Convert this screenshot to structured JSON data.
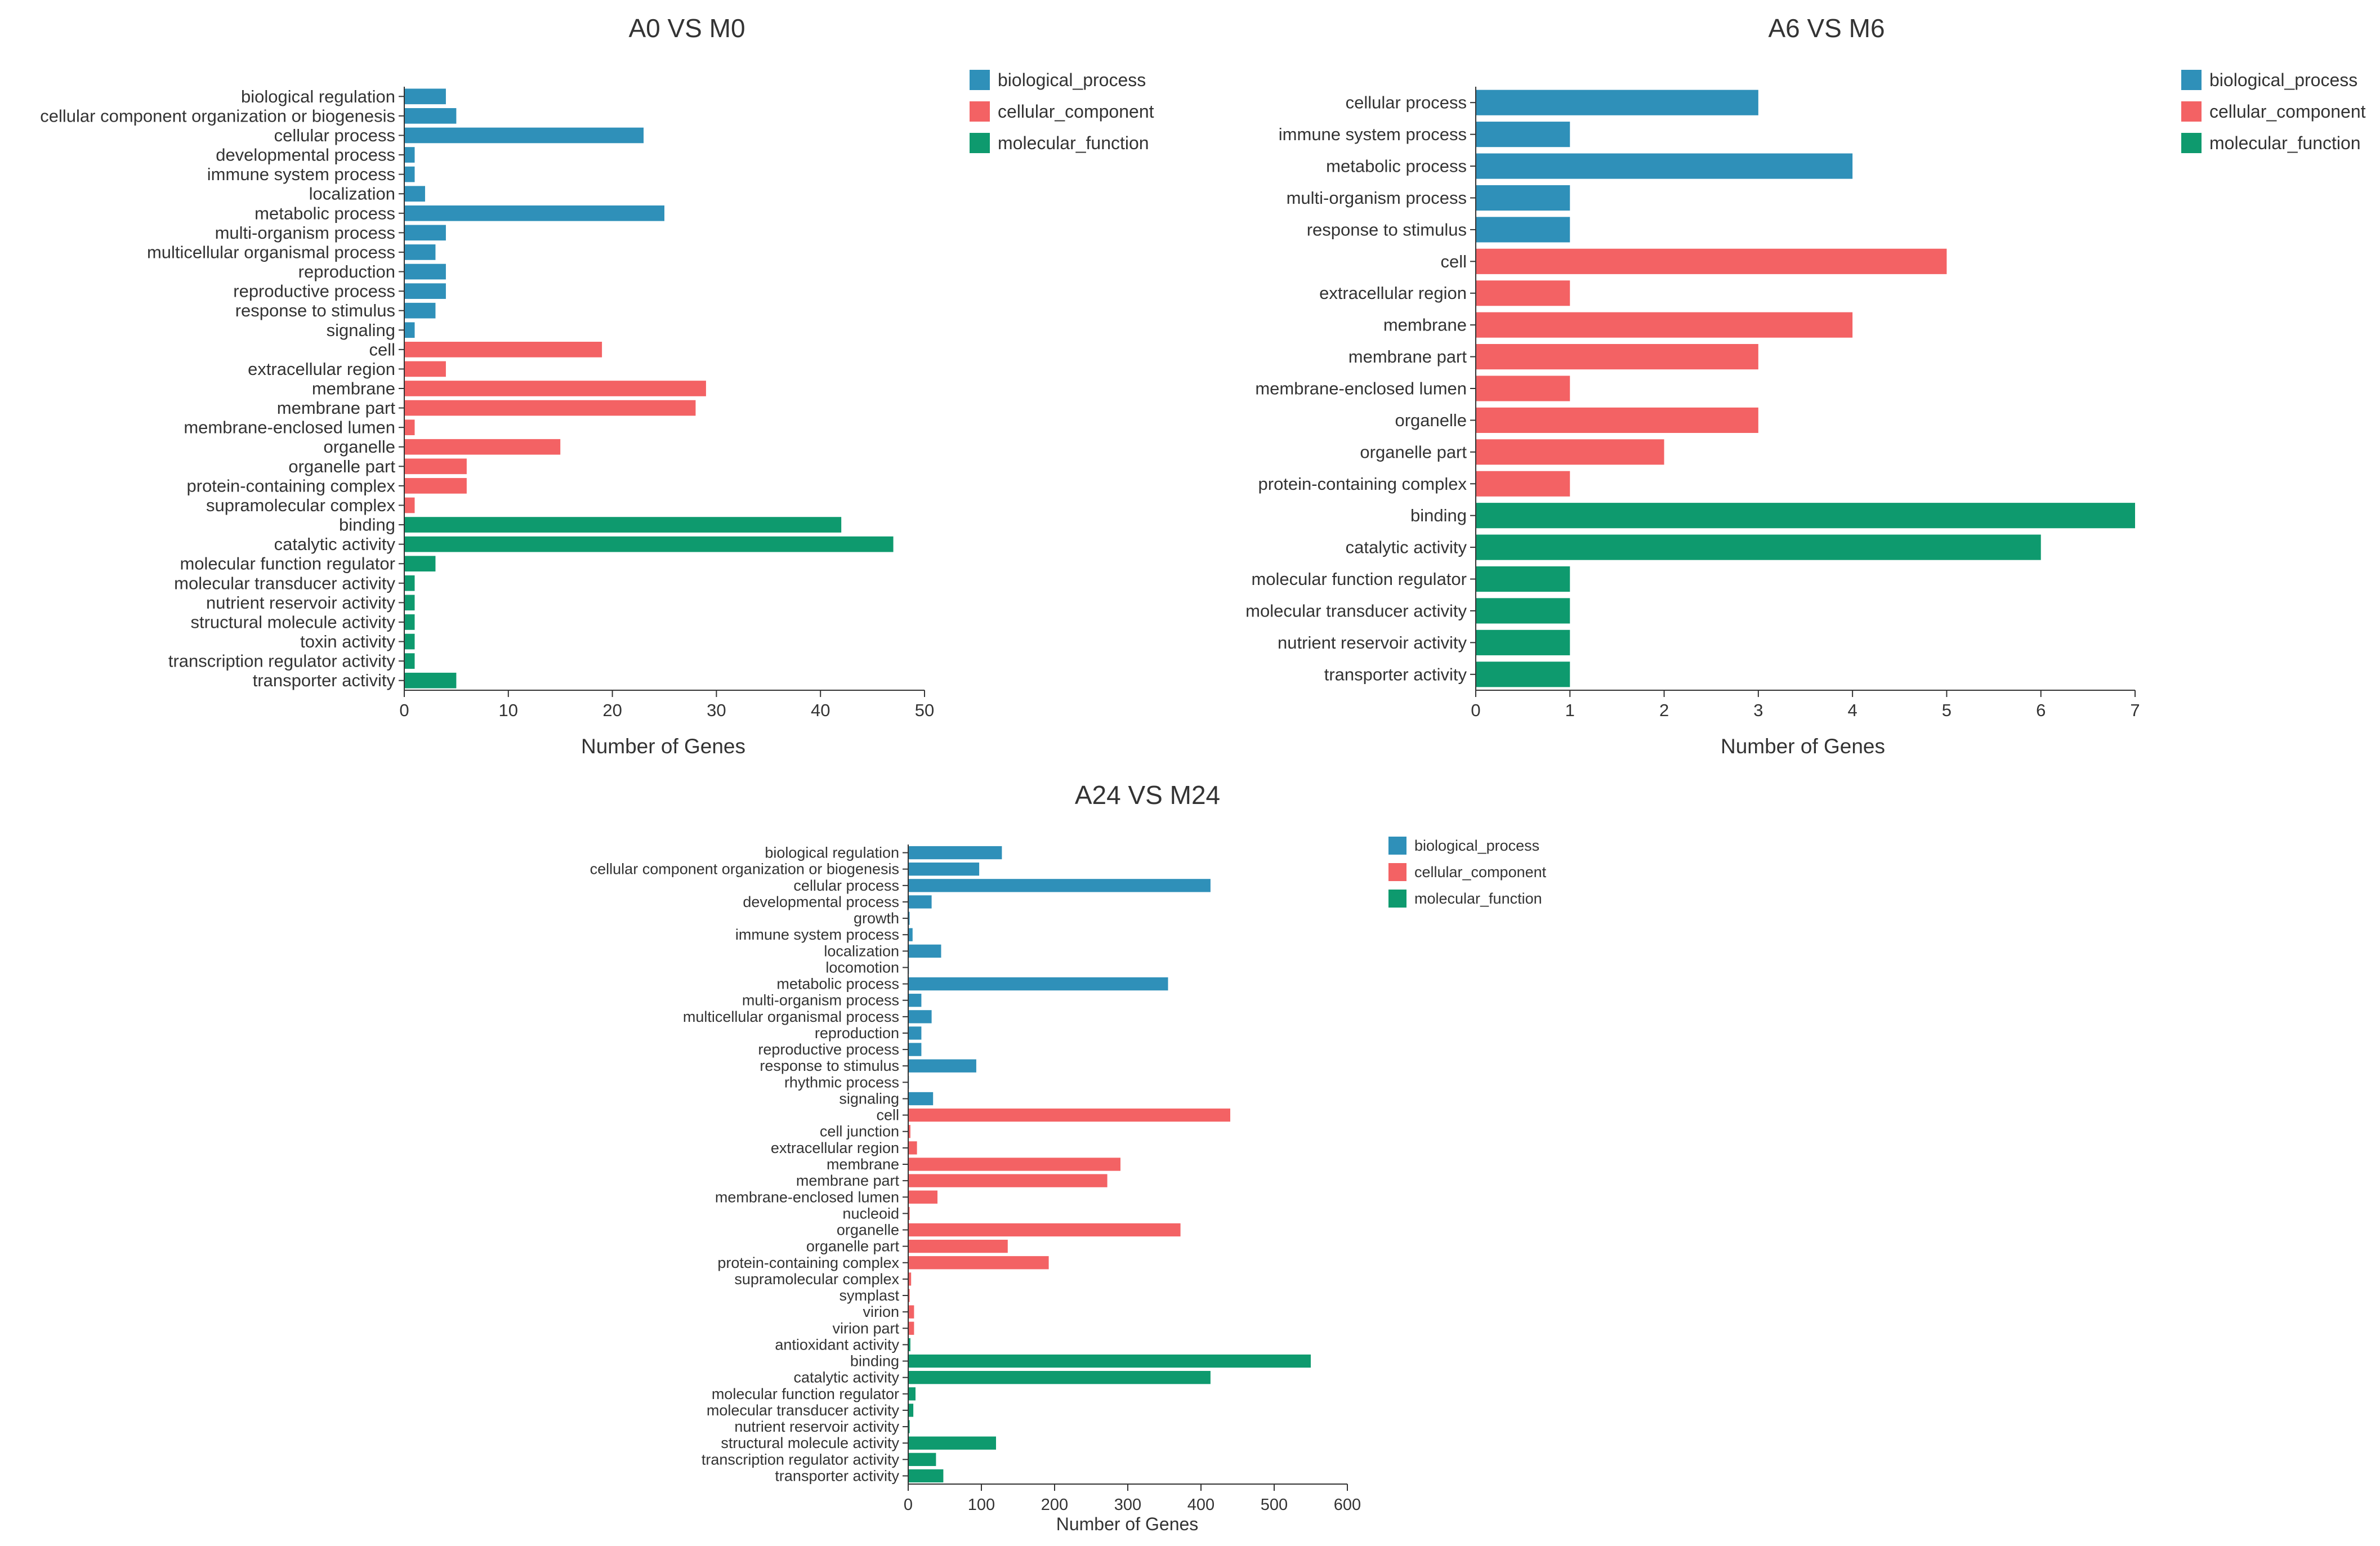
{
  "colors": {
    "biological_process": "#2f90b9",
    "cellular_component": "#f36264",
    "molecular_function": "#0e9a6e"
  },
  "chart_data": [
    {
      "type": "bar",
      "orientation": "horizontal",
      "title": "A0 VS M0",
      "xlabel": "Number of Genes",
      "xlim": [
        0,
        50
      ],
      "xticks": [
        0,
        10,
        20,
        30,
        40,
        50
      ],
      "legend_position": "top-right",
      "legend": [
        "biological_process",
        "cellular_component",
        "molecular_function"
      ],
      "categories": [
        "biological regulation",
        "cellular component organization or biogenesis",
        "cellular process",
        "developmental process",
        "immune system process",
        "localization",
        "metabolic process",
        "multi-organism process",
        "multicellular organismal process",
        "reproduction",
        "reproductive process",
        "response to stimulus",
        "signaling",
        "cell",
        "extracellular region",
        "membrane",
        "membrane part",
        "membrane-enclosed lumen",
        "organelle",
        "organelle part",
        "protein-containing complex",
        "supramolecular complex",
        "binding",
        "catalytic activity",
        "molecular function regulator",
        "molecular transducer activity",
        "nutrient reservoir activity",
        "structural molecule activity",
        "toxin activity",
        "transcription regulator activity",
        "transporter activity"
      ],
      "values": [
        4,
        5,
        23,
        1,
        1,
        2,
        25,
        4,
        3,
        4,
        4,
        3,
        1,
        19,
        4,
        29,
        28,
        1,
        15,
        6,
        6,
        1,
        42,
        47,
        3,
        1,
        1,
        1,
        1,
        1,
        5
      ],
      "groups": [
        "biological_process",
        "biological_process",
        "biological_process",
        "biological_process",
        "biological_process",
        "biological_process",
        "biological_process",
        "biological_process",
        "biological_process",
        "biological_process",
        "biological_process",
        "biological_process",
        "biological_process",
        "cellular_component",
        "cellular_component",
        "cellular_component",
        "cellular_component",
        "cellular_component",
        "cellular_component",
        "cellular_component",
        "cellular_component",
        "cellular_component",
        "molecular_function",
        "molecular_function",
        "molecular_function",
        "molecular_function",
        "molecular_function",
        "molecular_function",
        "molecular_function",
        "molecular_function",
        "molecular_function"
      ]
    },
    {
      "type": "bar",
      "orientation": "horizontal",
      "title": "A6 VS M6",
      "xlabel": "Number of Genes",
      "xlim": [
        0,
        7
      ],
      "xticks": [
        0,
        1,
        2,
        3,
        4,
        5,
        6,
        7
      ],
      "legend_position": "top-right",
      "legend": [
        "biological_process",
        "cellular_component",
        "molecular_function"
      ],
      "categories": [
        "cellular process",
        "immune system process",
        "metabolic process",
        "multi-organism process",
        "response to stimulus",
        "cell",
        "extracellular region",
        "membrane",
        "membrane part",
        "membrane-enclosed lumen",
        "organelle",
        "organelle part",
        "protein-containing complex",
        "binding",
        "catalytic activity",
        "molecular function regulator",
        "molecular transducer activity",
        "nutrient reservoir activity",
        "transporter activity"
      ],
      "values": [
        3,
        1,
        4,
        1,
        1,
        5,
        1,
        4,
        3,
        1,
        3,
        2,
        1,
        7,
        6,
        1,
        1,
        1,
        1
      ],
      "groups": [
        "biological_process",
        "biological_process",
        "biological_process",
        "biological_process",
        "biological_process",
        "cellular_component",
        "cellular_component",
        "cellular_component",
        "cellular_component",
        "cellular_component",
        "cellular_component",
        "cellular_component",
        "cellular_component",
        "molecular_function",
        "molecular_function",
        "molecular_function",
        "molecular_function",
        "molecular_function",
        "molecular_function"
      ]
    },
    {
      "type": "bar",
      "orientation": "horizontal",
      "title": "A24 VS M24",
      "xlabel": "Number of Genes",
      "xlim": [
        0,
        600
      ],
      "xticks": [
        0,
        100,
        200,
        300,
        400,
        500,
        600
      ],
      "legend_position": "top-right",
      "legend": [
        "biological_process",
        "cellular_component",
        "molecular_function"
      ],
      "categories": [
        "biological regulation",
        "cellular component organization or biogenesis",
        "cellular process",
        "developmental process",
        "growth",
        "immune system process",
        "localization",
        "locomotion",
        "metabolic process",
        "multi-organism process",
        "multicellular organismal process",
        "reproduction",
        "reproductive process",
        "response to stimulus",
        "rhythmic process",
        "signaling",
        "cell",
        "cell junction",
        "extracellular region",
        "membrane",
        "membrane part",
        "membrane-enclosed lumen",
        "nucleoid",
        "organelle",
        "organelle part",
        "protein-containing complex",
        "supramolecular complex",
        "symplast",
        "virion",
        "virion part",
        "antioxidant activity",
        "binding",
        "catalytic activity",
        "molecular function regulator",
        "molecular transducer activity",
        "nutrient reservoir activity",
        "structural molecule activity",
        "transcription regulator activity",
        "transporter activity"
      ],
      "values": [
        128,
        97,
        413,
        32,
        2,
        6,
        45,
        1,
        355,
        18,
        32,
        18,
        18,
        93,
        1,
        34,
        440,
        3,
        12,
        290,
        272,
        40,
        2,
        372,
        136,
        192,
        4,
        2,
        8,
        8,
        3,
        550,
        413,
        10,
        7,
        2,
        120,
        38,
        48
      ],
      "groups": [
        "biological_process",
        "biological_process",
        "biological_process",
        "biological_process",
        "biological_process",
        "biological_process",
        "biological_process",
        "biological_process",
        "biological_process",
        "biological_process",
        "biological_process",
        "biological_process",
        "biological_process",
        "biological_process",
        "biological_process",
        "biological_process",
        "cellular_component",
        "cellular_component",
        "cellular_component",
        "cellular_component",
        "cellular_component",
        "cellular_component",
        "cellular_component",
        "cellular_component",
        "cellular_component",
        "cellular_component",
        "cellular_component",
        "cellular_component",
        "cellular_component",
        "cellular_component",
        "molecular_function",
        "molecular_function",
        "molecular_function",
        "molecular_function",
        "molecular_function",
        "molecular_function",
        "molecular_function",
        "molecular_function",
        "molecular_function"
      ]
    }
  ]
}
